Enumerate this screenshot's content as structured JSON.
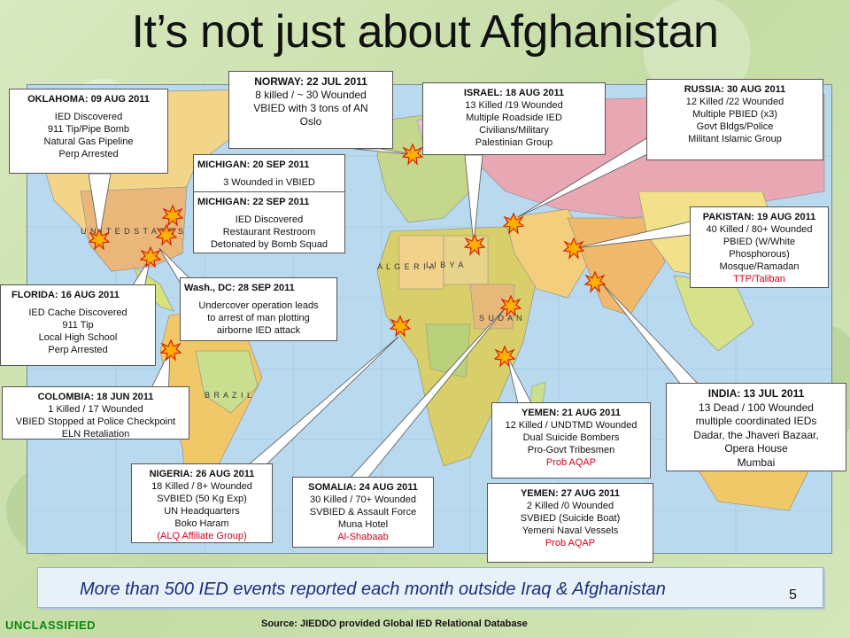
{
  "title": "It’s not just about Afghanistan",
  "events": {
    "oklahoma": {
      "head": "OKLAHOMA: 09 AUG 2011",
      "lines": [
        "IED Discovered",
        "911 Tip/Pipe Bomb",
        "Natural Gas Pipeline",
        "Perp Arrested"
      ]
    },
    "norway": {
      "head": "NORWAY: 22 JUL 2011",
      "lines": [
        "8 killed / ~ 30 Wounded",
        "VBIED with 3 tons of AN",
        "Oslo"
      ]
    },
    "israel": {
      "head": "ISRAEL:  18 AUG  2011",
      "lines": [
        "13 Killed /19 Wounded",
        "Multiple  Roadside IED",
        "Civilians/Military",
        "Palestinian Group"
      ]
    },
    "russia": {
      "head": "RUSSIA:  30 AUG  2011",
      "lines": [
        "12 Killed /22 Wounded",
        "Multiple PBIED (x3)",
        "Govt Bldgs/Police",
        "Militant Islamic Group"
      ]
    },
    "michigan1": {
      "head": "MICHIGAN: 20 SEP 2011",
      "lines": [
        "3 Wounded in VBIED"
      ]
    },
    "michigan2": {
      "head": "MICHIGAN: 22 SEP 2011",
      "lines": [
        "IED Discovered",
        "Restaurant Restroom",
        "Detonated by Bomb Squad"
      ]
    },
    "pakistan": {
      "head": "PAKISTAN: 19 AUG 2011",
      "lines": [
        "40 Killed / 80+ Wounded",
        "PBIED (W/White",
        "Phosphorous)",
        "Mosque/Ramadan"
      ],
      "red": "TTP/Taliban"
    },
    "florida": {
      "head": "FLORIDA: 16 AUG 2011",
      "lines": [
        "IED Cache Discovered",
        "911 Tip",
        "Local High School",
        "Perp Arrested"
      ]
    },
    "washdc": {
      "head": "Wash., DC: 28 SEP 2011",
      "lines": [
        "Undercover operation leads",
        "to arrest of man plotting",
        "airborne IED attack"
      ]
    },
    "colombia": {
      "head": "COLOMBIA: 18 JUN 2011",
      "lines": [
        "1 Killed / 17 Wounded",
        "VBIED Stopped at Police Checkpoint",
        "ELN Retaliation"
      ]
    },
    "india": {
      "head": "INDIA: 13 JUL 2011",
      "lines": [
        "13 Dead / 100 Wounded",
        "multiple coordinated IEDs",
        "Dadar, the Jhaveri Bazaar,",
        "Opera House",
        "Mumbai"
      ]
    },
    "yemen1": {
      "head": "YEMEN: 21 AUG 2011",
      "lines": [
        "12 Killed / UNDTMD Wounded",
        "Dual  Suicide Bombers",
        "Pro-Govt Tribesmen"
      ],
      "red": "Prob AQAP"
    },
    "nigeria": {
      "head": "NIGERIA:  26 AUG 2011",
      "lines": [
        "18 Killed / 8+ Wounded",
        "SVBIED (50 Kg Exp)",
        "UN Headquarters",
        "Boko Haram"
      ],
      "red": "(ALQ Affiliate Group)"
    },
    "somalia": {
      "head": "SOMALIA:  24 AUG 2011",
      "lines": [
        "30 Killed / 70+ Wounded",
        "SVBIED & Assault Force",
        "Muna Hotel"
      ],
      "red": "Al-Shabaab"
    },
    "yemen2": {
      "head": "YEMEN: 27 AUG 2011",
      "lines": [
        "2 Killed /0 Wounded",
        "SVBIED (Suicide Boat)",
        "Yemeni Naval Vessels"
      ],
      "red": "Prob AQAP"
    }
  },
  "map_labels": {
    "united_states": "U N I T E D   S T A T E S",
    "brazil": "B R A Z I L",
    "algeria": "A L G E R I A",
    "libya": "L I B Y A",
    "sudan": "S U D A N"
  },
  "footer": "More than 500 IED events reported each month outside Iraq & Afghanistan",
  "page_number": "5",
  "classification": "UNCLASSIFIED",
  "source": "Source: JIEDDO provided Global IED Relational Database",
  "colors": {
    "footer_text": "#1a2f7a",
    "classification": "#0a8a0a",
    "red_text": "#d4001a",
    "ocean": "#b9d9ee"
  }
}
